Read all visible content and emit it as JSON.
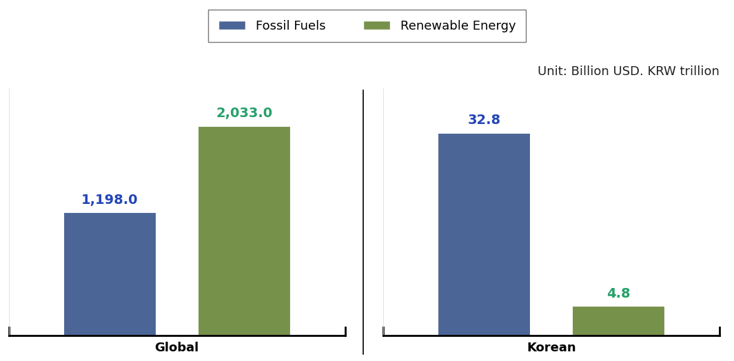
{
  "chart_data": [
    {
      "type": "bar",
      "xlabel": "Global",
      "categories": [
        null
      ],
      "series": [
        {
          "name": "Fossil Fuels",
          "color": "#4b6597",
          "values": [
            1198.0
          ],
          "value_labels": [
            "1,198.0"
          ]
        },
        {
          "name": "Renewable Energy",
          "color": "#76914a",
          "values": [
            2033.0
          ],
          "value_labels": [
            "2,033.0"
          ]
        }
      ],
      "ylim": [
        0,
        2400
      ],
      "yticks": [],
      "data_labels": true,
      "tick_labels": false,
      "legend": "upper center"
    },
    {
      "type": "bar",
      "xlabel": "Korean",
      "subtitle": "Unit: Billion USD. KRW trillion",
      "categories": [
        null
      ],
      "series": [
        {
          "name": "Fossil Fuels",
          "color": "#4b6597",
          "values": [
            32.8
          ],
          "value_labels": [
            "32.8"
          ]
        },
        {
          "name": "Renewable Energy",
          "color": "#76914a",
          "values": [
            4.8
          ],
          "value_labels": [
            "4.8"
          ]
        }
      ],
      "ylim": [
        0,
        40
      ],
      "yticks": [],
      "data_labels": true,
      "tick_labels": false
    }
  ]
}
